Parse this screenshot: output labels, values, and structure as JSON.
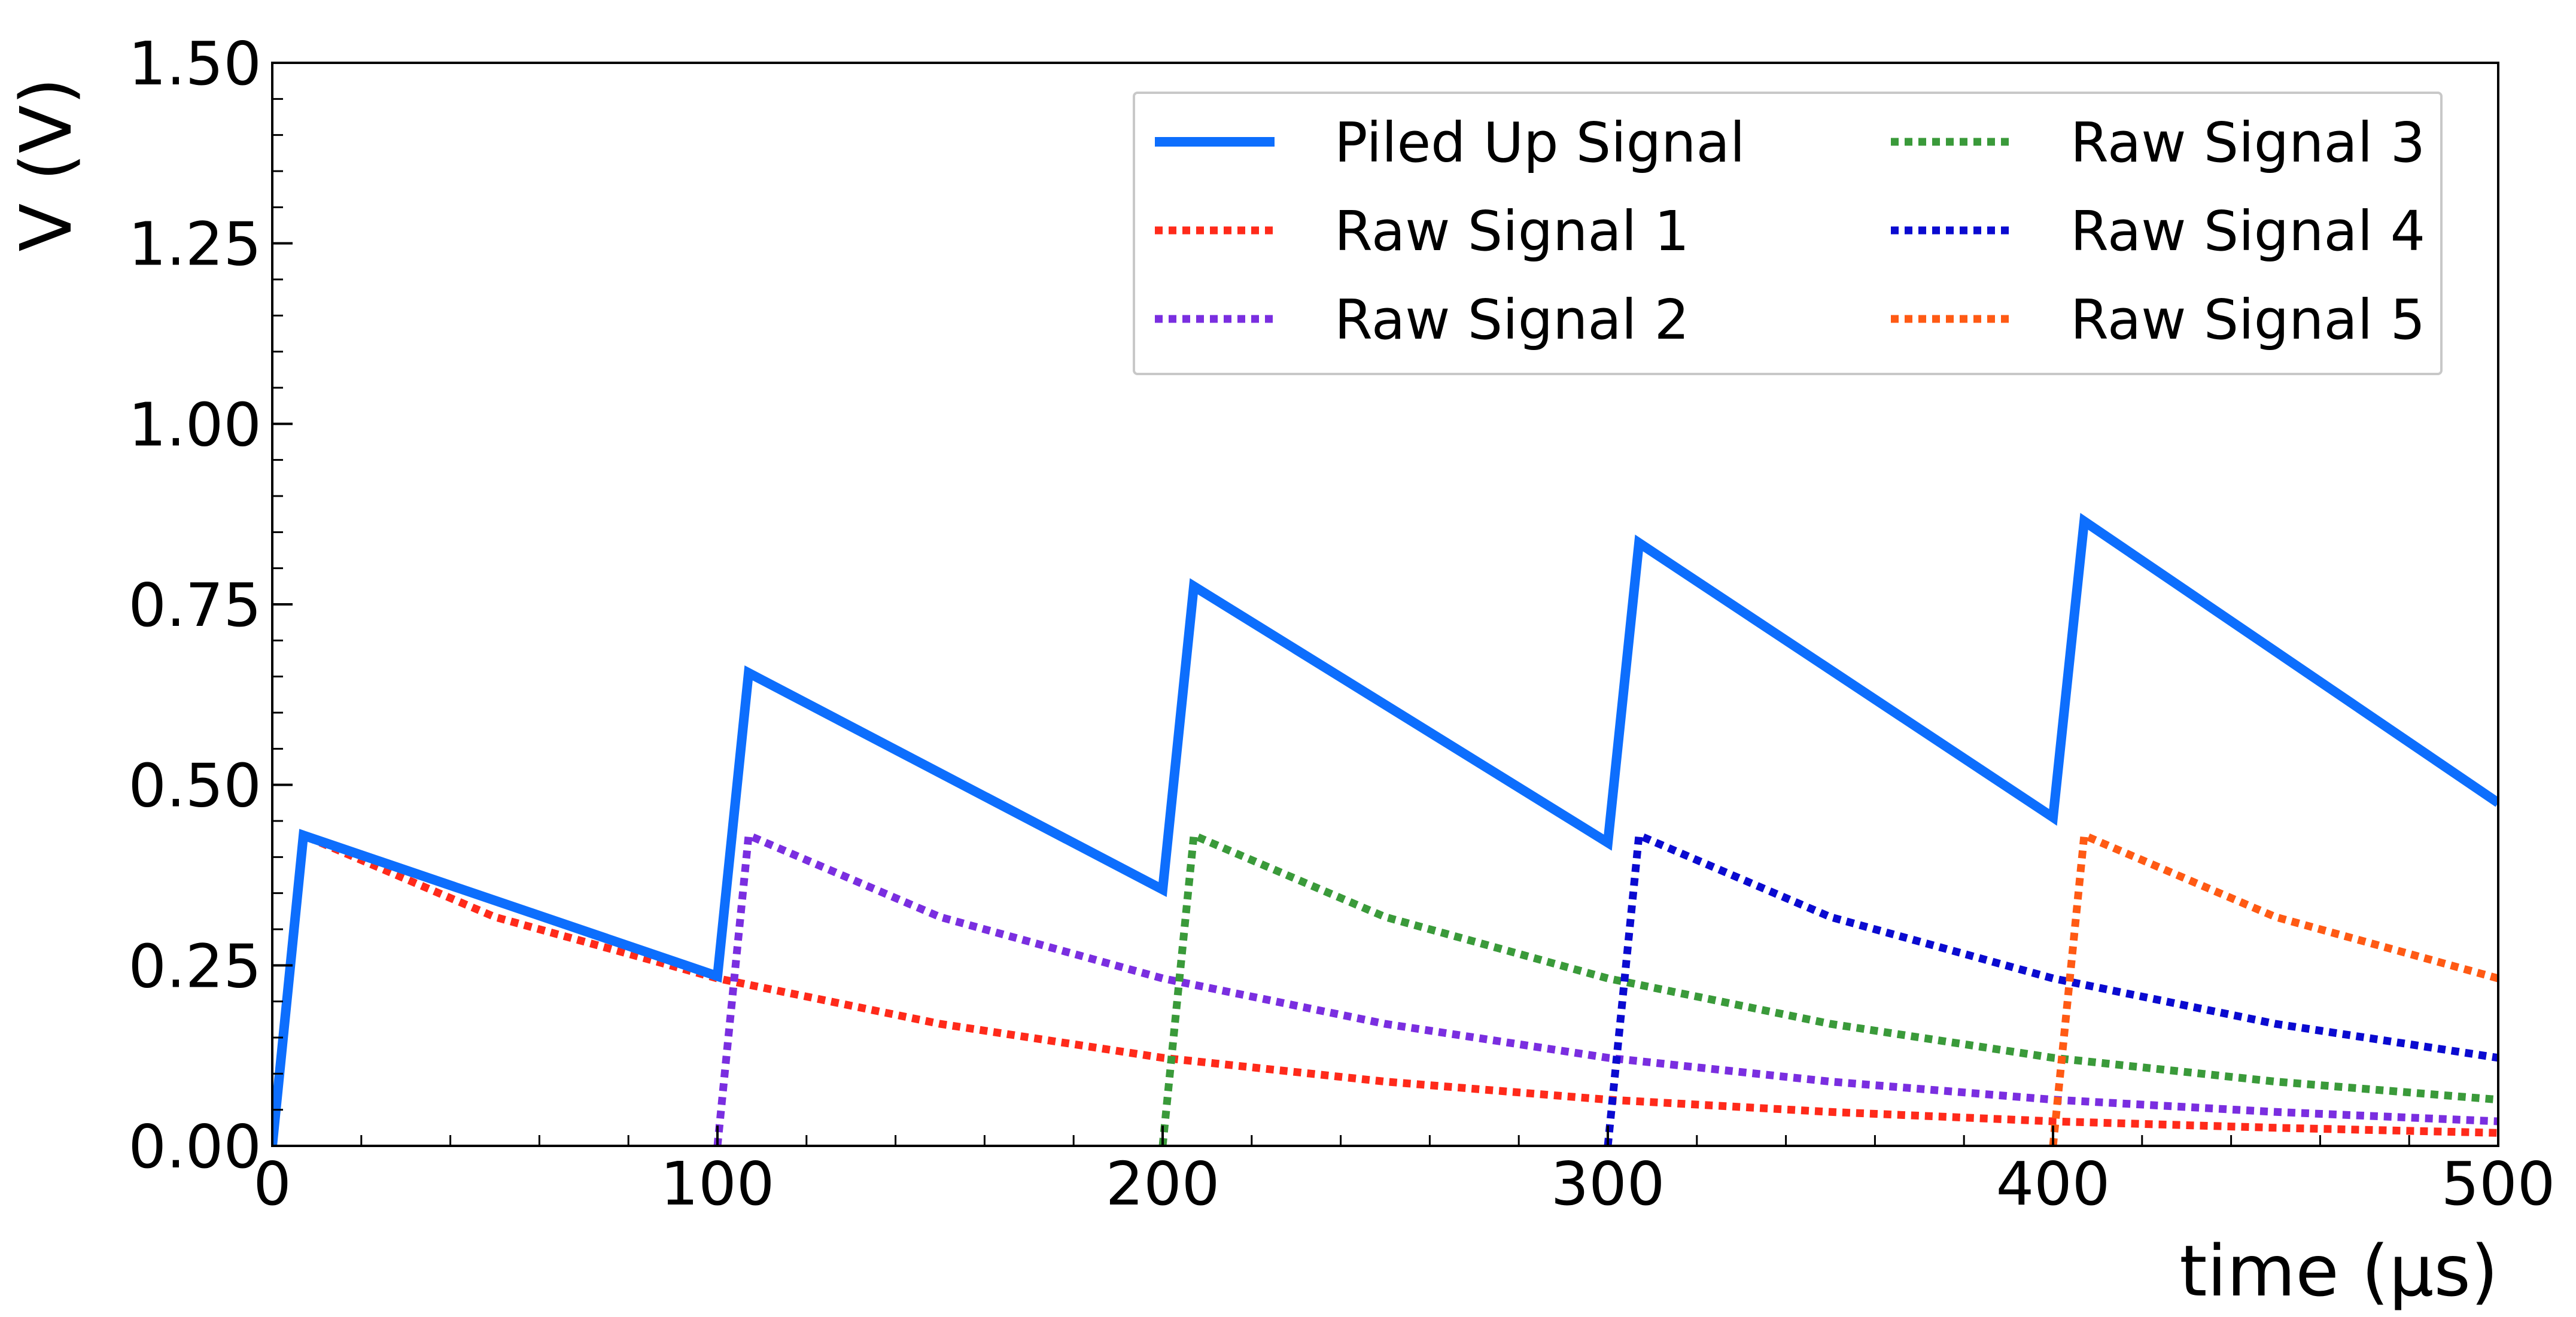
{
  "chart_data": {
    "type": "line",
    "xlabel": "time (μs)",
    "ylabel": "V (V)",
    "xlim": [
      0,
      500
    ],
    "ylim": [
      0,
      1.5
    ],
    "x_ticks": [
      0,
      100,
      200,
      300,
      400,
      500
    ],
    "x_tick_labels": [
      "0",
      "100",
      "200",
      "300",
      "400",
      "500"
    ],
    "y_ticks": [
      0,
      0.25,
      0.5,
      0.75,
      1.0,
      1.25,
      1.5
    ],
    "y_tick_labels": [
      "0.00",
      "0.25",
      "0.50",
      "0.75",
      "1.00",
      "1.25",
      "1.50"
    ],
    "x_minor_step": 20,
    "y_minor_step": 0.05,
    "grid": false,
    "legend_position": "top-right",
    "legend_columns": 2,
    "series": [
      {
        "name": "Piled Up Signal",
        "style": "solid",
        "color": "#0d6efd",
        "x": [
          0,
          7,
          100,
          107,
          200,
          207,
          300,
          307,
          400,
          407,
          500
        ],
        "y": [
          0,
          0.43,
          0.235,
          0.655,
          0.355,
          0.775,
          0.42,
          0.835,
          0.455,
          0.865,
          0.475
        ]
      },
      {
        "name": "Raw Signal 1",
        "style": "dotted",
        "color": "#ff2a1a",
        "x": [
          0,
          7,
          50,
          100,
          150,
          200,
          250,
          300,
          350,
          400,
          450,
          500
        ],
        "y": [
          0,
          0.43,
          0.317,
          0.232,
          0.169,
          0.122,
          0.089,
          0.064,
          0.047,
          0.034,
          0.025,
          0.018
        ]
      },
      {
        "name": "Raw Signal 2",
        "style": "dotted",
        "color": "#7a2ee0",
        "x": [
          100,
          107,
          150,
          200,
          250,
          300,
          350,
          400,
          450,
          500
        ],
        "y": [
          0,
          0.43,
          0.317,
          0.232,
          0.169,
          0.122,
          0.089,
          0.064,
          0.047,
          0.034
        ]
      },
      {
        "name": "Raw Signal 3",
        "style": "dotted",
        "color": "#3a9a3a",
        "x": [
          200,
          207,
          250,
          300,
          350,
          400,
          450,
          500
        ],
        "y": [
          0,
          0.43,
          0.317,
          0.232,
          0.169,
          0.122,
          0.089,
          0.064
        ]
      },
      {
        "name": "Raw Signal 4",
        "style": "dotted",
        "color": "#0a0ad0",
        "x": [
          300,
          307,
          350,
          400,
          450,
          500
        ],
        "y": [
          0,
          0.43,
          0.317,
          0.232,
          0.169,
          0.122
        ]
      },
      {
        "name": "Raw Signal 5",
        "style": "dotted",
        "color": "#ff5a14",
        "x": [
          400,
          407,
          450,
          500
        ],
        "y": [
          0,
          0.43,
          0.317,
          0.232
        ]
      }
    ]
  }
}
